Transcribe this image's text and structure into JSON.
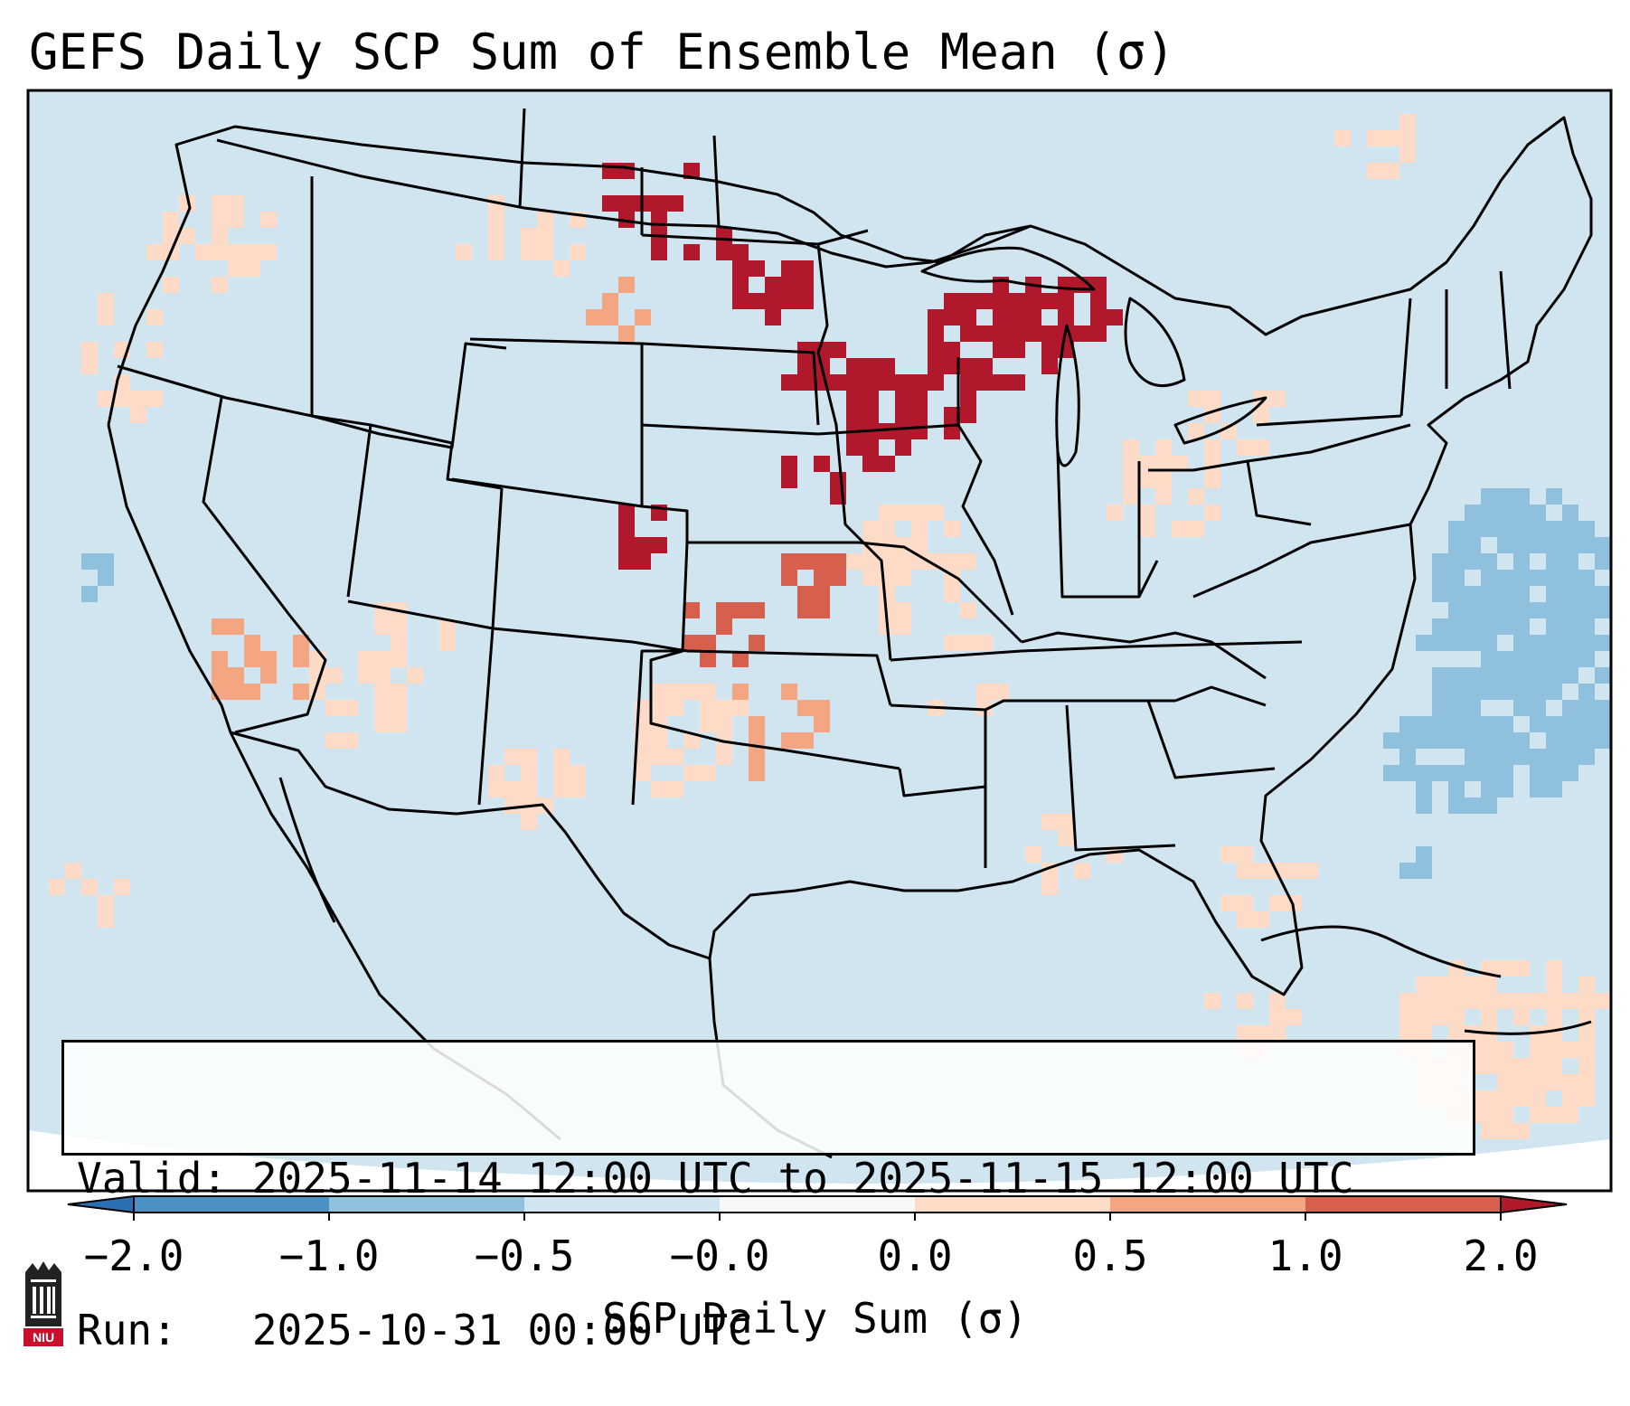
{
  "title": "GEFS Daily SCP Sum of Ensemble Mean (σ)",
  "info": {
    "valid_line": "Valid: 2025-11-14 12:00 UTC to 2025-11-15 12:00 UTC",
    "run_line": "Run:   2025-10-31 00:00 UTC"
  },
  "colorbar": {
    "label": "SCP Daily Sum (σ)",
    "ticks": [
      "−2.0",
      "−1.0",
      "−0.5",
      "−0.0",
      "0.0",
      "0.5",
      "1.0",
      "2.0"
    ],
    "colors": {
      "lt_m2": "#2b6fb3",
      "m2_m1": "#4a90c4",
      "m1_m05": "#8fc1de",
      "m05_0": "#d1e5f0",
      "zero": "#f7f7f7",
      "z_05": "#fddbc7",
      "p05_1": "#f4a582",
      "p1_2": "#d6604d",
      "gt_2": "#b2182b"
    }
  },
  "logo": {
    "text": "NIU",
    "icon": "university-tower-logo"
  }
}
